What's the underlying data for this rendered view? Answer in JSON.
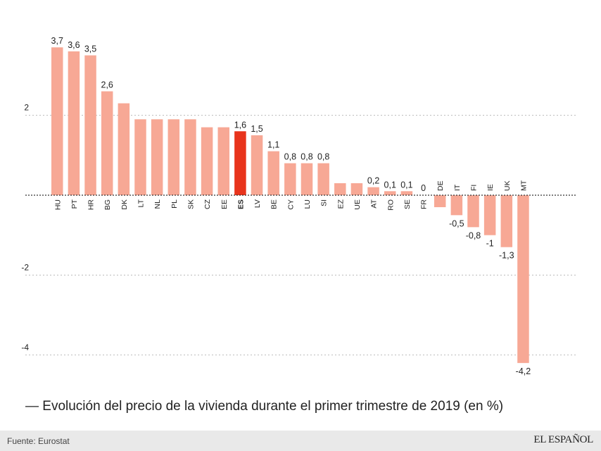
{
  "caption": "— Evolución del precio de la vivienda durante el primer trimestre de 2019 (en %)",
  "footer": {
    "source": "Fuente: Eurostat",
    "logo": "EL ESPAÑOL"
  },
  "colors": {
    "bar": "#f7a895",
    "highlight": "#e8341c",
    "grid": "#bbbbbb",
    "zero_line": "#333333",
    "text": "#222222",
    "footer_bg": "#e9e9e9"
  },
  "chart_data": {
    "type": "bar",
    "categories": [
      "HU",
      "PT",
      "HR",
      "BG",
      "DK",
      "LT",
      "NL",
      "PL",
      "SK",
      "CZ",
      "EE",
      "ES",
      "LV",
      "BE",
      "CY",
      "LU",
      "SI",
      "EZ",
      "UE",
      "AT",
      "RO",
      "SE",
      "FR",
      "DE",
      "IT",
      "FI",
      "IE",
      "UK",
      "MT"
    ],
    "values": [
      3.7,
      3.6,
      3.5,
      2.6,
      2.3,
      1.9,
      1.9,
      1.9,
      1.9,
      1.7,
      1.7,
      1.6,
      1.5,
      1.1,
      0.8,
      0.8,
      0.8,
      0.3,
      0.3,
      0.2,
      0.1,
      0.1,
      0,
      -0.3,
      -0.5,
      -0.8,
      -1,
      -1.3,
      -4.2
    ],
    "data_labels": [
      "3,7",
      "3,6",
      "3,5",
      "2,6",
      "",
      "",
      "",
      "",
      "",
      "",
      "",
      "1,6",
      "1,5",
      "1,1",
      "0,8",
      "0,8",
      "0,8",
      "",
      "",
      "0,2",
      "0,1",
      "0,1",
      "0",
      "",
      "-0,5",
      "-0,8",
      "-1",
      "-1,3",
      "-4,2"
    ],
    "highlight": "ES",
    "yticks": [
      "2",
      "-2",
      "-4"
    ],
    "ytick_values": [
      2,
      -2,
      -4
    ],
    "ylim": [
      -4.6,
      4.1
    ],
    "grid": "horizontal dotted",
    "zero_line": "dotted"
  }
}
